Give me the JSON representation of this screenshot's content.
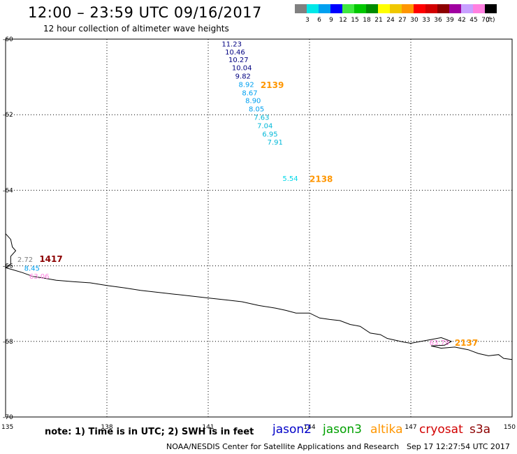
{
  "header": {
    "title": "12:00 – 23:59 UTC 09/16/2017",
    "subtitle": "12 hour collection of altimeter wave heights"
  },
  "colorbar": {
    "unit": "(ft)",
    "entries": [
      {
        "label": "3",
        "color": "#808080"
      },
      {
        "label": "6",
        "color": "#00e8e8"
      },
      {
        "label": "9",
        "color": "#00a0f0"
      },
      {
        "label": "12",
        "color": "#0000ff"
      },
      {
        "label": "15",
        "color": "#40e840"
      },
      {
        "label": "18",
        "color": "#00c800"
      },
      {
        "label": "21",
        "color": "#008c00"
      },
      {
        "label": "24",
        "color": "#ffff00"
      },
      {
        "label": "27",
        "color": "#f0c800"
      },
      {
        "label": "30",
        "color": "#ff9600"
      },
      {
        "label": "33",
        "color": "#ff0000"
      },
      {
        "label": "36",
        "color": "#d20000"
      },
      {
        "label": "39",
        "color": "#8c0000"
      },
      {
        "label": "42",
        "color": "#a000a0"
      },
      {
        "label": "45",
        "color": "#c8a0ff"
      },
      {
        "label": "70",
        "color": "#ff80e0"
      },
      {
        "label": "",
        "color": "#000000"
      }
    ]
  },
  "axes": {
    "lat_ticks": [
      "-60",
      "-62",
      "-64",
      "-66",
      "-68",
      "-70"
    ],
    "lon_ticks": [
      "135",
      "138",
      "141",
      "144",
      "147",
      "150"
    ],
    "lat_range": [
      -70,
      -60
    ],
    "lon_range": [
      135,
      150
    ]
  },
  "chart_data": {
    "type": "scatter",
    "observations": [
      {
        "lon": 141.4,
        "lat": -60.12,
        "label": "11.23",
        "color": "#000080"
      },
      {
        "lon": 141.5,
        "lat": -60.33,
        "label": "10.46",
        "color": "#000080"
      },
      {
        "lon": 141.6,
        "lat": -60.54,
        "label": "10.27",
        "color": "#000080"
      },
      {
        "lon": 141.7,
        "lat": -60.75,
        "label": "10.04",
        "color": "#000080"
      },
      {
        "lon": 141.8,
        "lat": -60.97,
        "label": "9.82",
        "color": "#000080"
      },
      {
        "lon": 141.9,
        "lat": -61.19,
        "label": "8.92",
        "color": "#00a0f0"
      },
      {
        "lon": 142.0,
        "lat": -61.41,
        "label": "8.67",
        "color": "#00a0f0"
      },
      {
        "lon": 142.1,
        "lat": -61.62,
        "label": "8.90",
        "color": "#00a0f0"
      },
      {
        "lon": 142.2,
        "lat": -61.84,
        "label": "8.05",
        "color": "#00a0f0"
      },
      {
        "lon": 142.35,
        "lat": -62.06,
        "label": "7.63",
        "color": "#00b8d8"
      },
      {
        "lon": 142.45,
        "lat": -62.28,
        "label": "7.04",
        "color": "#00b8d8"
      },
      {
        "lon": 142.6,
        "lat": -62.5,
        "label": "6.95",
        "color": "#00b8d8"
      },
      {
        "lon": 142.75,
        "lat": -62.72,
        "label": "7.91",
        "color": "#00b8d8"
      },
      {
        "lon": 143.2,
        "lat": -63.68,
        "label": "5.54",
        "color": "#00d8e8"
      },
      {
        "lon": 135.35,
        "lat": -65.82,
        "label": "2.72",
        "color": "#808080"
      },
      {
        "lon": 135.55,
        "lat": -66.05,
        "label": "8.45",
        "color": "#00a0f0"
      },
      {
        "lon": 135.7,
        "lat": -66.27,
        "label": "63.06",
        "color": "#ff80e0"
      },
      {
        "lon": 147.55,
        "lat": -68.02,
        "label": "63.79",
        "color": "#ff80e0"
      }
    ],
    "time_labels": [
      {
        "lon": 142.55,
        "lat": -61.2,
        "label": "2139",
        "color": "#ff9600"
      },
      {
        "lon": 144.0,
        "lat": -63.69,
        "label": "2138",
        "color": "#ff9600"
      },
      {
        "lon": 136.0,
        "lat": -65.8,
        "label": "1417",
        "color": "#8c0000"
      },
      {
        "lon": 148.3,
        "lat": -68.02,
        "label": "2137",
        "color": "#ff9600"
      }
    ],
    "coastline": [
      [
        135.0,
        -65.15
      ],
      [
        135.15,
        -65.3
      ],
      [
        135.2,
        -65.5
      ],
      [
        135.3,
        -65.6
      ],
      [
        135.15,
        -65.75
      ],
      [
        135.15,
        -65.95
      ],
      [
        135.0,
        -66.05
      ],
      [
        135.2,
        -66.1
      ],
      [
        135.5,
        -66.18
      ],
      [
        135.8,
        -66.28
      ],
      [
        136.1,
        -66.32
      ],
      [
        136.5,
        -66.38
      ],
      [
        137.0,
        -66.42
      ],
      [
        137.5,
        -66.45
      ],
      [
        138.0,
        -66.52
      ],
      [
        138.5,
        -66.58
      ],
      [
        139.0,
        -66.65
      ],
      [
        139.5,
        -66.7
      ],
      [
        140.0,
        -66.75
      ],
      [
        140.5,
        -66.8
      ],
      [
        141.0,
        -66.85
      ],
      [
        141.5,
        -66.9
      ],
      [
        142.0,
        -66.95
      ],
      [
        142.5,
        -67.05
      ],
      [
        143.0,
        -67.12
      ],
      [
        143.3,
        -67.18
      ],
      [
        143.6,
        -67.25
      ],
      [
        144.0,
        -67.25
      ],
      [
        144.3,
        -67.38
      ],
      [
        144.6,
        -67.42
      ],
      [
        144.9,
        -67.45
      ],
      [
        145.2,
        -67.55
      ],
      [
        145.5,
        -67.6
      ],
      [
        145.8,
        -67.78
      ],
      [
        146.1,
        -67.82
      ],
      [
        146.3,
        -67.92
      ],
      [
        146.6,
        -67.98
      ],
      [
        146.8,
        -68.02
      ],
      [
        147.0,
        -68.05
      ],
      [
        147.3,
        -68.0
      ],
      [
        147.6,
        -67.95
      ],
      [
        147.9,
        -67.9
      ],
      [
        148.2,
        -68.0
      ],
      [
        148.0,
        -68.1
      ],
      [
        147.6,
        -68.12
      ],
      [
        147.9,
        -68.18
      ],
      [
        148.3,
        -68.15
      ],
      [
        148.7,
        -68.22
      ],
      [
        149.0,
        -68.32
      ],
      [
        149.3,
        -68.38
      ],
      [
        149.6,
        -68.35
      ],
      [
        149.75,
        -68.45
      ],
      [
        150.0,
        -68.48
      ]
    ]
  },
  "note": {
    "text": "note: 1) Time is in UTC; 2) SWH is in feet",
    "satellites": [
      {
        "label": "jason2",
        "color": "#0000c8"
      },
      {
        "label": "jason3",
        "color": "#00a000"
      },
      {
        "label": "altika",
        "color": "#ff9600"
      },
      {
        "label": "cryosat",
        "color": "#d20000"
      },
      {
        "label": "s3a",
        "color": "#8c0000"
      }
    ]
  },
  "footer": {
    "credit": "NOAA/NESDIS Center for Satellite Applications and Research",
    "timestamp": "Sep 17 12:27:54 UTC 2017"
  }
}
